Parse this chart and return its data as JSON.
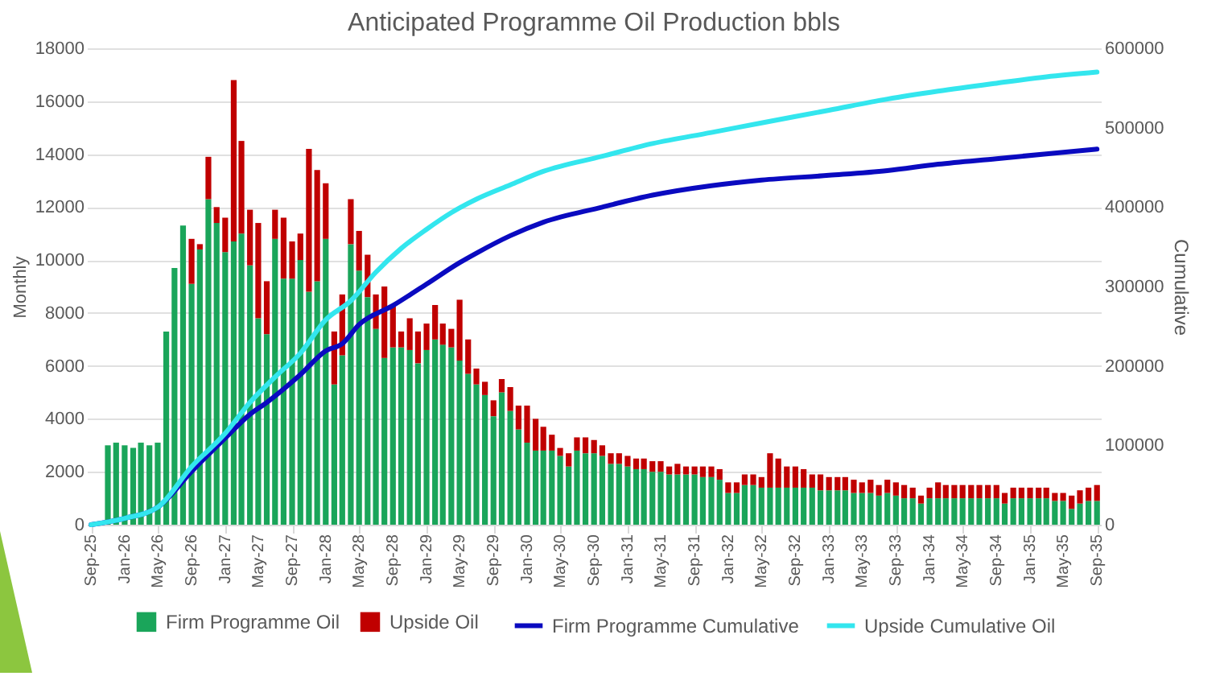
{
  "chart_data": {
    "type": "bar",
    "title": "Anticipated Programme Oil Production bbls",
    "ylabel": "Monthly",
    "y2label": "Cumulative",
    "stacked": true,
    "grid": "y",
    "legend": "bottom",
    "x": [
      "2025-11",
      "2025-12",
      "2026-01",
      "2026-02",
      "2026-03",
      "2026-04",
      "2026-05",
      "2026-06",
      "2026-07",
      "2026-08",
      "2026-09",
      "2026-10",
      "2026-11",
      "2026-12",
      "2027-01",
      "2027-02",
      "2027-03",
      "2027-04",
      "2027-05",
      "2027-06",
      "2027-07",
      "2027-08",
      "2027-09",
      "2027-10",
      "2027-11",
      "2027-12",
      "2028-01",
      "2028-02",
      "2028-03",
      "2028-04",
      "2028-05",
      "2028-06",
      "2028-07",
      "2028-08",
      "2028-09",
      "2028-10",
      "2028-11",
      "2028-12",
      "2029-01",
      "2029-02",
      "2029-03",
      "2029-04",
      "2029-05",
      "2029-06",
      "2029-07",
      "2029-08",
      "2029-09",
      "2029-10",
      "2029-11",
      "2029-12",
      "2030-01",
      "2030-02",
      "2030-03",
      "2030-04",
      "2030-05",
      "2030-06",
      "2030-07",
      "2030-08",
      "2030-09",
      "2030-10",
      "2030-11",
      "2030-12",
      "2031-01",
      "2031-02",
      "2031-03",
      "2031-04",
      "2031-05",
      "2031-06",
      "2031-07",
      "2031-08",
      "2031-09",
      "2031-10",
      "2031-11",
      "2031-12",
      "2032-01",
      "2032-02",
      "2032-03",
      "2032-04",
      "2032-05",
      "2032-06",
      "2032-07",
      "2032-08",
      "2032-09",
      "2032-10",
      "2032-11",
      "2032-12",
      "2033-01",
      "2033-02",
      "2033-03",
      "2033-04",
      "2033-05",
      "2033-06",
      "2033-07",
      "2033-08",
      "2033-09",
      "2033-10",
      "2033-11",
      "2033-12",
      "2034-01",
      "2034-02",
      "2034-03",
      "2034-04",
      "2034-05",
      "2034-06",
      "2034-07",
      "2034-08",
      "2034-09",
      "2034-10",
      "2034-11",
      "2034-12",
      "2035-01",
      "2035-02",
      "2035-03",
      "2035-04",
      "2035-05",
      "2035-06",
      "2035-07",
      "2035-08",
      "2035-09"
    ],
    "xlim": [
      "2025-08-17",
      "2035-09-15"
    ],
    "xticks": [
      {
        "value": "2025-09",
        "label": "Sep-25"
      },
      {
        "value": "2026-01",
        "label": "Jan-26"
      },
      {
        "value": "2026-05",
        "label": "May-26"
      },
      {
        "value": "2026-09",
        "label": "Sep-26"
      },
      {
        "value": "2027-01",
        "label": "Jan-27"
      },
      {
        "value": "2027-05",
        "label": "May-27"
      },
      {
        "value": "2027-09",
        "label": "Sep-27"
      },
      {
        "value": "2028-01",
        "label": "Jan-28"
      },
      {
        "value": "2028-05",
        "label": "May-28"
      },
      {
        "value": "2028-09",
        "label": "Sep-28"
      },
      {
        "value": "2029-01",
        "label": "Jan-29"
      },
      {
        "value": "2029-05",
        "label": "May-29"
      },
      {
        "value": "2029-09",
        "label": "Sep-29"
      },
      {
        "value": "2030-01",
        "label": "Jan-30"
      },
      {
        "value": "2030-05",
        "label": "May-30"
      },
      {
        "value": "2030-09",
        "label": "Sep-30"
      },
      {
        "value": "2031-01",
        "label": "Jan-31"
      },
      {
        "value": "2031-05",
        "label": "May-31"
      },
      {
        "value": "2031-09",
        "label": "Sep-31"
      },
      {
        "value": "2032-01",
        "label": "Jan-32"
      },
      {
        "value": "2032-05",
        "label": "May-32"
      },
      {
        "value": "2032-09",
        "label": "Sep-32"
      },
      {
        "value": "2033-01",
        "label": "Jan-33"
      },
      {
        "value": "2033-05",
        "label": "May-33"
      },
      {
        "value": "2033-09",
        "label": "Sep-33"
      },
      {
        "value": "2034-01",
        "label": "Jan-34"
      },
      {
        "value": "2034-05",
        "label": "May-34"
      },
      {
        "value": "2034-09",
        "label": "Sep-34"
      },
      {
        "value": "2035-01",
        "label": "Jan-35"
      },
      {
        "value": "2035-05",
        "label": "May-35"
      },
      {
        "value": "2035-09",
        "label": "Sep-35"
      }
    ],
    "ylim": [
      0,
      18000
    ],
    "yticks": [
      0,
      2000,
      4000,
      6000,
      8000,
      10000,
      12000,
      14000,
      16000,
      18000
    ],
    "y2lim": [
      0,
      600000
    ],
    "y2ticks": [
      0,
      100000,
      200000,
      300000,
      400000,
      500000,
      600000
    ],
    "series": [
      {
        "name": "Firm Programme Oil",
        "color": "#1aa55a",
        "values": [
          3000,
          3100,
          3000,
          2900,
          3100,
          3000,
          3100,
          7300,
          9700,
          11300,
          9100,
          10400,
          12300,
          11400,
          10300,
          10700,
          11000,
          9800,
          7800,
          7200,
          10800,
          9300,
          9300,
          10000,
          8800,
          9200,
          10800,
          5300,
          6400,
          10600,
          9600,
          8600,
          7400,
          6300,
          6700,
          6700,
          6600,
          6100,
          6600,
          7000,
          6800,
          6700,
          6200,
          5700,
          5300,
          4900,
          4100,
          5000,
          4300,
          3600,
          3100,
          2800,
          2800,
          2800,
          2600,
          2200,
          2800,
          2700,
          2700,
          2600,
          2300,
          2300,
          2200,
          2100,
          2100,
          2000,
          2000,
          1900,
          1900,
          1900,
          1900,
          1800,
          1800,
          1700,
          1200,
          1200,
          1500,
          1500,
          1400,
          1400,
          1400,
          1400,
          1400,
          1400,
          1400,
          1300,
          1300,
          1300,
          1300,
          1200,
          1200,
          1200,
          1100,
          1200,
          1100,
          1000,
          1000,
          800,
          1000,
          1000,
          1000,
          1000,
          1000,
          1000,
          1000,
          1000,
          1000,
          800,
          1000,
          1000,
          1000,
          1000,
          1000,
          900,
          900,
          600,
          800,
          900,
          900
        ]
      },
      {
        "name": "Upside Oil",
        "color": "#c00000",
        "values": [
          0,
          0,
          0,
          0,
          0,
          0,
          0,
          0,
          0,
          0,
          1700,
          200,
          1600,
          600,
          1300,
          6100,
          3500,
          2100,
          3600,
          2000,
          1100,
          2300,
          1400,
          1000,
          5400,
          4200,
          2100,
          2000,
          2300,
          1700,
          1500,
          1600,
          1300,
          2700,
          1600,
          600,
          1200,
          1200,
          1000,
          1300,
          800,
          700,
          2300,
          1300,
          600,
          500,
          600,
          500,
          900,
          900,
          1400,
          1200,
          900,
          600,
          300,
          500,
          500,
          600,
          500,
          400,
          400,
          400,
          400,
          400,
          400,
          400,
          400,
          300,
          400,
          300,
          300,
          400,
          400,
          400,
          400,
          400,
          400,
          400,
          400,
          1300,
          1100,
          800,
          800,
          700,
          500,
          600,
          500,
          500,
          500,
          500,
          400,
          500,
          400,
          500,
          500,
          500,
          400,
          300,
          400,
          600,
          500,
          500,
          500,
          500,
          500,
          500,
          500,
          400,
          400,
          400,
          400,
          400,
          400,
          300,
          300,
          500,
          500,
          500,
          600
        ]
      },
      {
        "name": "Firm Programme Cumulative",
        "type": "line",
        "axis": "y2",
        "color": "#0a0ac0",
        "x": [
          "2025-09",
          "2026-01",
          "2026-05",
          "2026-09",
          "2027-01",
          "2027-04",
          "2027-06",
          "2027-10",
          "2028-01",
          "2028-03",
          "2028-05",
          "2028-09",
          "2029-01",
          "2029-05",
          "2029-07",
          "2029-11",
          "2030-03",
          "2030-10",
          "2031-04",
          "2031-11",
          "2032-05",
          "2033-01",
          "2033-08",
          "2034-02",
          "2034-09",
          "2035-03",
          "2035-09"
        ],
        "values": [
          0,
          8000,
          22000,
          67000,
          109000,
          139000,
          154000,
          189000,
          219000,
          228000,
          252000,
          276000,
          303000,
          330000,
          342000,
          364000,
          381000,
          400000,
          415000,
          427000,
          434000,
          440000,
          446000,
          454000,
          461000,
          467000,
          473000
        ]
      },
      {
        "name": "Upside Cumulative Oil",
        "type": "line",
        "axis": "y2",
        "color": "#33e6ee",
        "x": [
          "2025-09",
          "2026-01",
          "2026-05",
          "2026-09",
          "2027-01",
          "2027-04",
          "2027-07",
          "2027-10",
          "2028-01",
          "2028-04",
          "2028-07",
          "2028-10",
          "2029-01",
          "2029-04",
          "2029-07",
          "2029-11",
          "2030-03",
          "2030-10",
          "2031-04",
          "2031-11",
          "2032-05",
          "2033-01",
          "2033-08",
          "2034-02",
          "2034-09",
          "2035-03",
          "2035-09"
        ],
        "values": [
          0,
          8000,
          22000,
          73000,
          115000,
          154000,
          186000,
          216000,
          258000,
          282000,
          318000,
          348000,
          372000,
          393000,
          410000,
          428000,
          445000,
          464000,
          480000,
          494000,
          506000,
          522000,
          536000,
          546000,
          556000,
          564000,
          570000
        ]
      }
    ]
  }
}
